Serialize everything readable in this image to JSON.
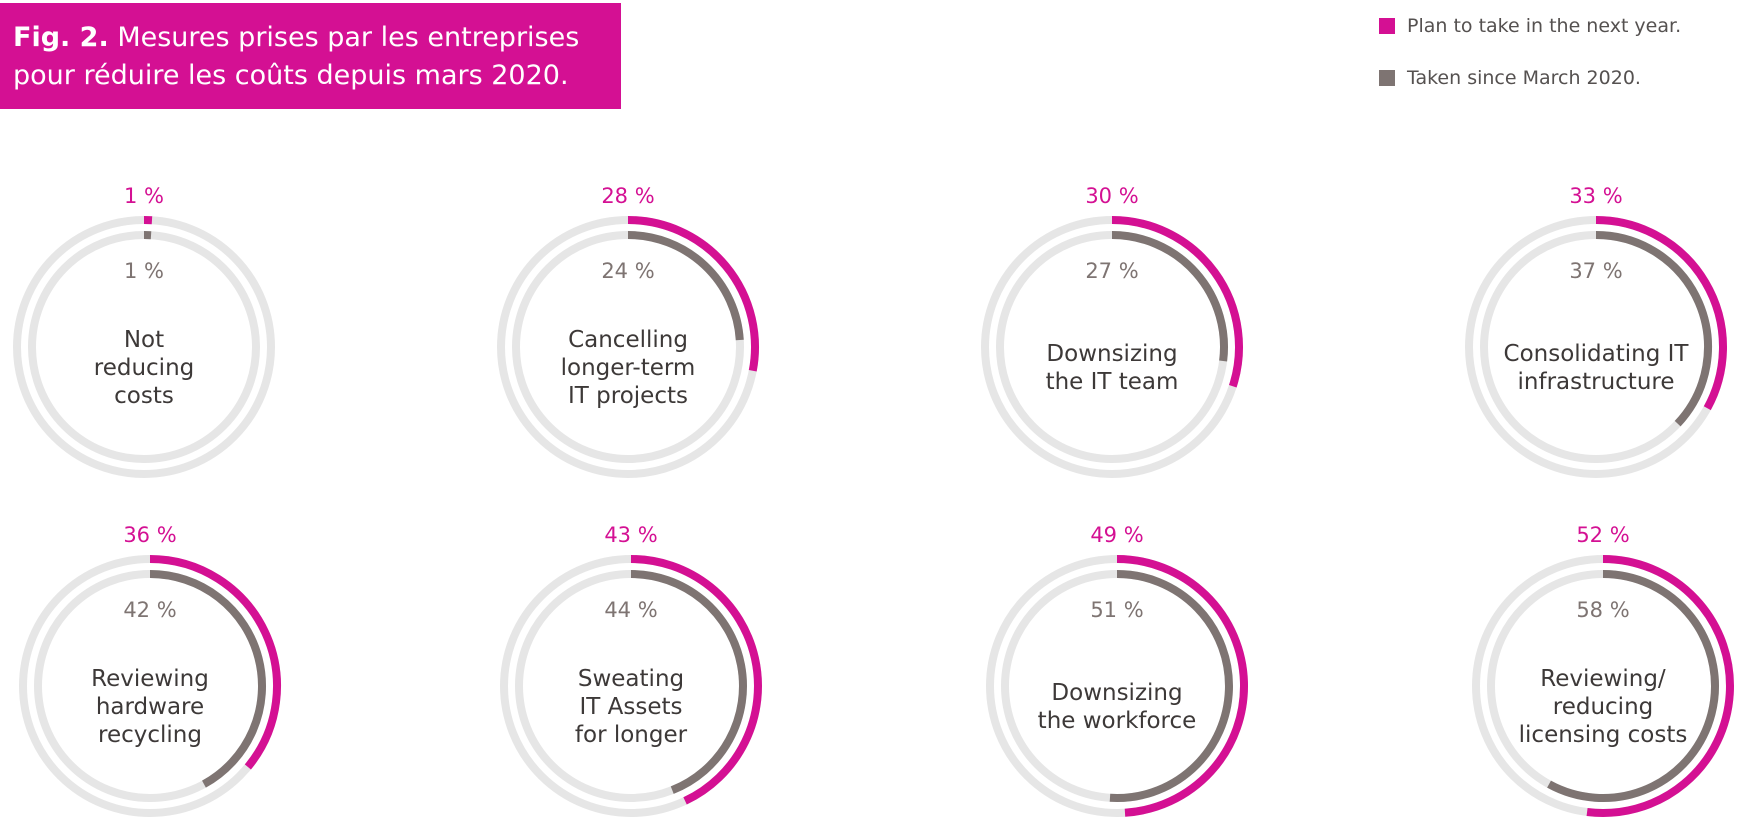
{
  "title": {
    "prefix": "Fig. 2.",
    "line1": "Mesures prises par les entreprises",
    "line2": "pour réduire les coûts depuis mars 2020."
  },
  "legend": [
    {
      "label": "Plan to take in the next year.",
      "color": "#d41093"
    },
    {
      "label": "Taken since March 2020.",
      "color": "#7e7472"
    }
  ],
  "colors": {
    "plan": "#d41093",
    "taken": "#7e7472",
    "track": "#e6e6e6"
  },
  "chart_data": {
    "type": "radial-bar",
    "unit": "%",
    "series_names": [
      "Plan to take in the next year.",
      "Taken since March 2020."
    ],
    "items": [
      {
        "label": "Not\nreducing\ncosts",
        "plan": 1,
        "taken": 1,
        "plan_label": "1 %",
        "taken_label": "1 %"
      },
      {
        "label": "Cancelling\nlonger-term\nIT projects",
        "plan": 28,
        "taken": 24,
        "plan_label": "28 %",
        "taken_label": "24 %"
      },
      {
        "label": "Downsizing\nthe IT team",
        "plan": 30,
        "taken": 27,
        "plan_label": "30 %",
        "taken_label": "27 %"
      },
      {
        "label": "Consolidating IT\ninfrastructure",
        "plan": 33,
        "taken": 37,
        "plan_label": "33 %",
        "taken_label": "37 %"
      },
      {
        "label": "Reviewing\nhardware\nrecycling",
        "plan": 36,
        "taken": 42,
        "plan_label": "36 %",
        "taken_label": "42 %"
      },
      {
        "label": "Sweating\nIT Assets\nfor longer",
        "plan": 43,
        "taken": 44,
        "plan_label": "43 %",
        "taken_label": "44 %"
      },
      {
        "label": "Downsizing\nthe workforce",
        "plan": 49,
        "taken": 51,
        "plan_label": "49 %",
        "taken_label": "51 %"
      },
      {
        "label": "Reviewing/\nreducing\nlicensing costs",
        "plan": 52,
        "taken": 58,
        "plan_label": "52 %",
        "taken_label": "58 %"
      }
    ]
  }
}
